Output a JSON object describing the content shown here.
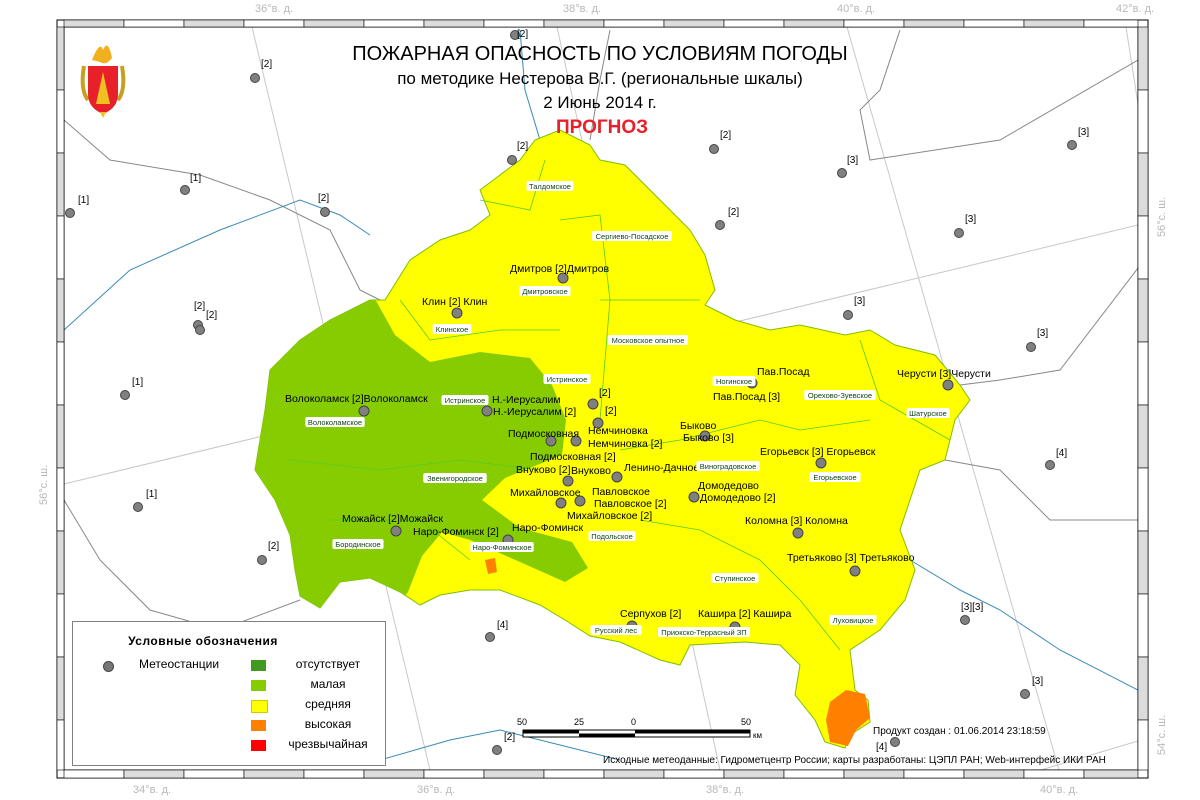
{
  "title": {
    "line1": "ПОЖАРНАЯ ОПАСНОСТЬ ПО УСЛОВИЯМ ПОГОДЫ",
    "line2": "по методике Нестерова В.Г. (региональные шкалы)",
    "date": "2 Июнь 2014 г.",
    "forecast": "ПРОГНОЗ"
  },
  "emblem": "moscow-oblast-coat-of-arms",
  "coords": {
    "top": [
      "36°в. д.",
      "38°в. д.",
      "40°в. д.",
      "42°в. д."
    ],
    "bottom": [
      "34°в. д.",
      "36°в. д.",
      "38°в. д.",
      "40°в. д."
    ],
    "left": [
      "56°с. ш."
    ],
    "right": [
      "56°с. ш.",
      "54°с. ш."
    ]
  },
  "colors": {
    "none": "#3f9a1f",
    "low": "#86cc00",
    "medium": "#ffff00",
    "high": "#ff8000",
    "extreme": "#ff0000",
    "station": "#808080"
  },
  "legend": {
    "title": "Условные обозначения",
    "stations": "Метеостанции",
    "classes": [
      "отсутствует",
      "малая",
      "средняя",
      "высокая",
      "чрезвычайная"
    ]
  },
  "scale": {
    "ticks": [
      "50",
      "25",
      "0",
      "50"
    ],
    "unit": "км"
  },
  "created": "Продукт создан : 01.06.2014 23:18:59",
  "credits": "Исходные метеоданные: Гидрометцентр России; карты разработаны: ЦЭПЛ РАН; Web-интерфейс ИКИ РАН",
  "outer_stations": [
    "[1]",
    "[1]",
    "[2]",
    "[2]",
    "[2]",
    "[2]",
    "[1]",
    "[1]",
    "[2]",
    "[4]",
    "[2]",
    "[2]",
    "[2]",
    "[2]",
    "[2]",
    "[3]",
    "[3]",
    "[3]",
    "[3]",
    "[3]",
    "[4]",
    "[3][3]",
    "[3]",
    "[4]"
  ],
  "stations": [
    "Дмитров [2]Дмитров",
    "Клин [2] Клин",
    "Волоколамск [2]Волоколамск",
    "Н.-Иерусалим",
    "Н.-Иерусалим [2]",
    "[2]",
    "[2]",
    "Немчиновка",
    "Немчиновка [2]",
    "Подмосковная",
    "Подмосковная [2]",
    "Внуково [2]",
    "Внуково",
    "Ленино-Дачное",
    "Михайловское",
    "Михайловское [2]",
    "Павловское",
    "Павловское [2]",
    "Домодедово",
    "Домодедово [2]",
    "Быково",
    "Быково [3]",
    "Пав.Посад",
    "Пав.Посад [3]",
    "Черусти [3]Черусти",
    "Егорьевск [3] Егорьевск",
    "Коломна [3] Коломна",
    "Третьяково [3] Третьяково",
    "Серпухов [2]",
    "Кашира [2] Кашира",
    "Наро-Фоминск [2]",
    "Наро-Фоминск",
    "Можайск [2]Можайск"
  ],
  "districts": [
    "Талдомское",
    "Сергиево-Посадское",
    "Дмитровское",
    "Клинское",
    "Московское опытное",
    "Истринское",
    "Истринское",
    "Волоколамское",
    "Звенигородское",
    "Бородинское",
    "Наро-Фоминское",
    "Подольское",
    "Ногинское",
    "Орехово-Зуевское",
    "Шатурское",
    "Виноградовское",
    "Егорьевское",
    "Ступинское",
    "Луховицкое",
    "Русский лес",
    "Приокско-Террасный ЗП"
  ]
}
